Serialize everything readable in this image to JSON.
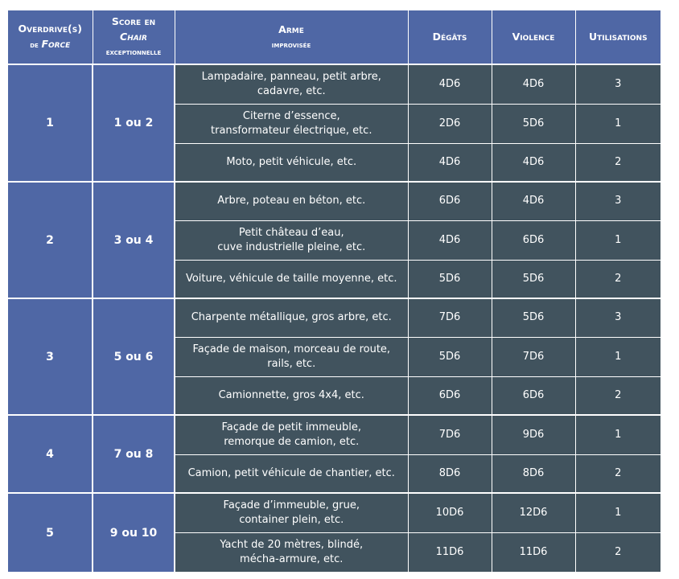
{
  "header": {
    "overdrive": {
      "line1": "Overdrive(s)",
      "line2_prefix": "de ",
      "line2_italic": "Force"
    },
    "chair": {
      "line1": "Score en",
      "line2_italic": "Chair",
      "line3": "exceptionnelle"
    },
    "arme": {
      "line1": "Arme",
      "line2": "improvisée"
    },
    "degats": "Dégâts",
    "violence": "Violence",
    "utilisations": "Utilisations"
  },
  "groups": [
    {
      "overdrive": "1",
      "chair": "1 ou 2",
      "rows": [
        {
          "weapon": [
            "Lampadaire, panneau, petit arbre,",
            "cadavre, etc."
          ],
          "degats": "4D6",
          "violence": "4D6",
          "utilisations": "3"
        },
        {
          "weapon": [
            "Citerne d’essence,",
            "transformateur électrique, etc."
          ],
          "degats": "2D6",
          "violence": "5D6",
          "utilisations": "1"
        },
        {
          "weapon": [
            "Moto, petit véhicule, etc."
          ],
          "degats": "4D6",
          "violence": "4D6",
          "utilisations": "2"
        }
      ]
    },
    {
      "overdrive": "2",
      "chair": "3 ou 4",
      "rows": [
        {
          "weapon": [
            "Arbre, poteau en béton, etc."
          ],
          "degats": "6D6",
          "violence": "4D6",
          "utilisations": "3"
        },
        {
          "weapon": [
            "Petit château d’eau,",
            "cuve industrielle pleine, etc."
          ],
          "degats": "4D6",
          "violence": "6D6",
          "utilisations": "1"
        },
        {
          "weapon": [
            "Voiture, véhicule de taille moyenne, etc."
          ],
          "degats": "5D6",
          "violence": "5D6",
          "utilisations": "2"
        }
      ]
    },
    {
      "overdrive": "3",
      "chair": "5 ou 6",
      "rows": [
        {
          "weapon": [
            "Charpente métallique, gros arbre, etc."
          ],
          "degats": "7D6",
          "violence": "5D6",
          "utilisations": "3"
        },
        {
          "weapon": [
            "Façade de maison, morceau de route,",
            "rails, etc."
          ],
          "degats": "5D6",
          "violence": "7D6",
          "utilisations": "1"
        },
        {
          "weapon": [
            "Camionnette, gros 4x4, etc."
          ],
          "degats": "6D6",
          "violence": "6D6",
          "utilisations": "2"
        }
      ]
    },
    {
      "overdrive": "4",
      "chair": "7 ou 8",
      "rows": [
        {
          "weapon": [
            "Façade de petit immeuble,",
            "remorque de camion, etc."
          ],
          "degats": "7D6",
          "violence": "9D6",
          "utilisations": "1"
        },
        {
          "weapon": [
            "Camion, petit véhicule de chantier, etc."
          ],
          "degats": "8D6",
          "violence": "8D6",
          "utilisations": "2"
        }
      ]
    },
    {
      "overdrive": "5",
      "chair": "9 ou 10",
      "rows": [
        {
          "weapon": [
            "Façade d’immeuble, grue,",
            "container plein, etc."
          ],
          "degats": "10D6",
          "violence": "12D6",
          "utilisations": "1"
        },
        {
          "weapon": [
            "Yacht de 20 mètres, blindé,",
            "mécha-armure, etc."
          ],
          "degats": "11D6",
          "violence": "11D6",
          "utilisations": "2"
        }
      ]
    }
  ]
}
